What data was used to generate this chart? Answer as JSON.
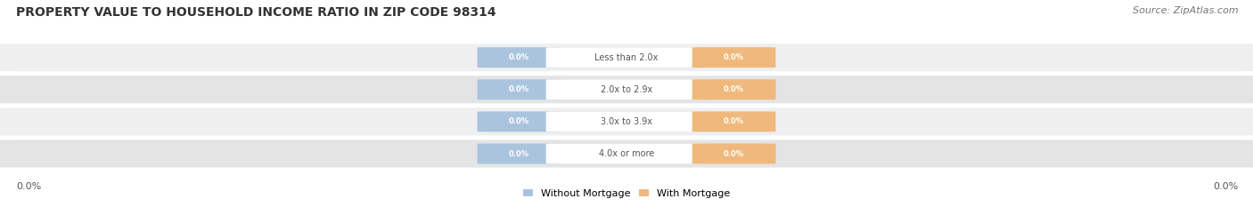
{
  "title": "PROPERTY VALUE TO HOUSEHOLD INCOME RATIO IN ZIP CODE 98314",
  "source": "Source: ZipAtlas.com",
  "categories": [
    "Less than 2.0x",
    "2.0x to 2.9x",
    "3.0x to 3.9x",
    "4.0x or more"
  ],
  "without_mortgage": [
    0.0,
    0.0,
    0.0,
    0.0
  ],
  "with_mortgage": [
    0.0,
    0.0,
    0.0,
    0.0
  ],
  "bar_color_left": "#aac4de",
  "bar_color_right": "#f0b87c",
  "row_bg_color_odd": "#efefef",
  "row_bg_color_even": "#e4e4e4",
  "center_box_color": "white",
  "center_label_color": "#555555",
  "legend_left_label": "Without Mortgage",
  "legend_right_label": "With Mortgage",
  "x_left_label": "0.0%",
  "x_right_label": "0.0%",
  "title_fontsize": 10,
  "source_fontsize": 8,
  "figsize": [
    14.06,
    2.33
  ],
  "dpi": 100
}
